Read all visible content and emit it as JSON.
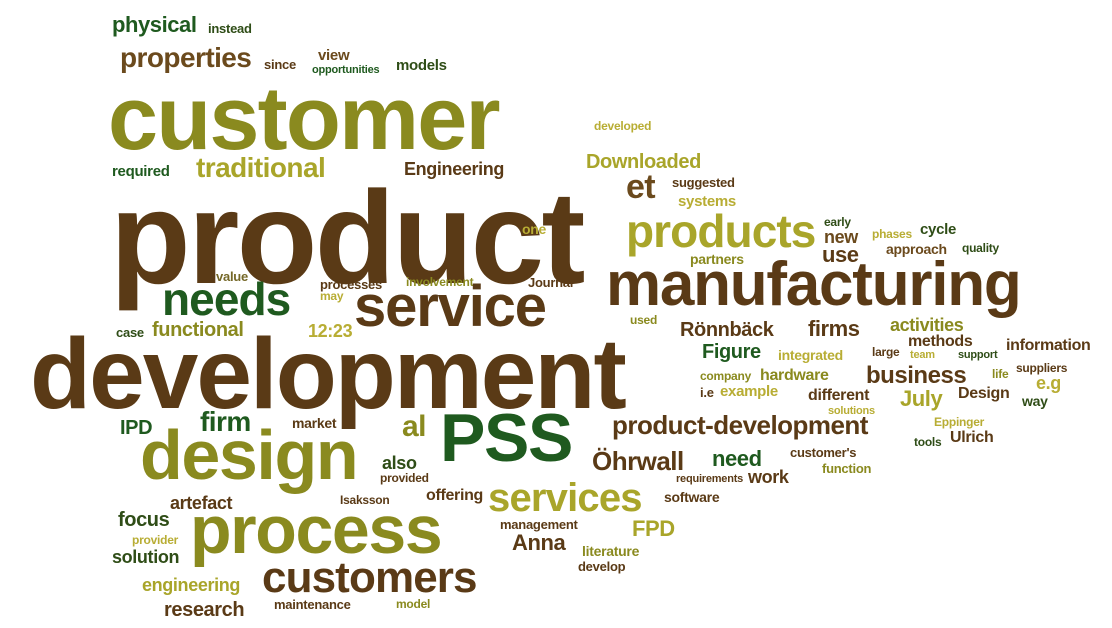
{
  "words": {
    "physical": "physical",
    "instead": "instead",
    "properties": "properties",
    "since": "since",
    "view": "view",
    "opportunities": "opportunities",
    "models": "models",
    "customer": "customer",
    "developed": "developed",
    "required": "required",
    "traditional": "traditional",
    "engineering_cap": "Engineering",
    "downloaded": "Downloaded",
    "suggested": "suggested",
    "et": "et",
    "systems": "systems",
    "product": "product",
    "products": "products",
    "early": "early",
    "one": "one",
    "new": "new",
    "phases": "phases",
    "cycle": "cycle",
    "partners": "partners",
    "use": "use",
    "approach": "approach",
    "quality": "quality",
    "value": "value",
    "needs": "needs",
    "processes": "processes",
    "involvement": "involvement",
    "journal": "Journal",
    "manufacturing": "manufacturing",
    "may": "may",
    "service": "service",
    "case": "case",
    "functional": "functional",
    "time": "12:23",
    "used": "used",
    "ronnback": "Rönnbäck",
    "firms": "firms",
    "activities": "activities",
    "methods": "methods",
    "development": "development",
    "figure": "Figure",
    "integrated": "integrated",
    "large": "large",
    "team": "team",
    "support": "support",
    "information": "information",
    "company": "company",
    "hardware": "hardware",
    "business": "business",
    "life": "life",
    "suppliers": "suppliers",
    "ie": "i.e",
    "example": "example",
    "eg": "e.g",
    "different": "different",
    "design_cap": "Design",
    "way": "way",
    "ipd": "IPD",
    "firm": "firm",
    "market": "market",
    "july": "July",
    "solutions": "solutions",
    "al": "al",
    "pss": "PSS",
    "product_development": "product-development",
    "eppinger": "Eppinger",
    "tools": "tools",
    "ulrich": "Ulrich",
    "design": "design",
    "also": "also",
    "need": "need",
    "customers_poss": "customer's",
    "function": "function",
    "provided": "provided",
    "ohrwall": "Öhrwall",
    "work": "work",
    "requirements": "requirements",
    "artefact": "artefact",
    "isaksson": "Isaksson",
    "offering": "offering",
    "services": "services",
    "software": "software",
    "focus": "focus",
    "process": "process",
    "management": "management",
    "fpd": "FPD",
    "provider": "provider",
    "anna": "Anna",
    "literature": "literature",
    "solution": "solution",
    "develop": "develop",
    "engineering": "engineering",
    "customers": "customers",
    "research": "research",
    "maintenance": "maintenance",
    "model": "model"
  }
}
